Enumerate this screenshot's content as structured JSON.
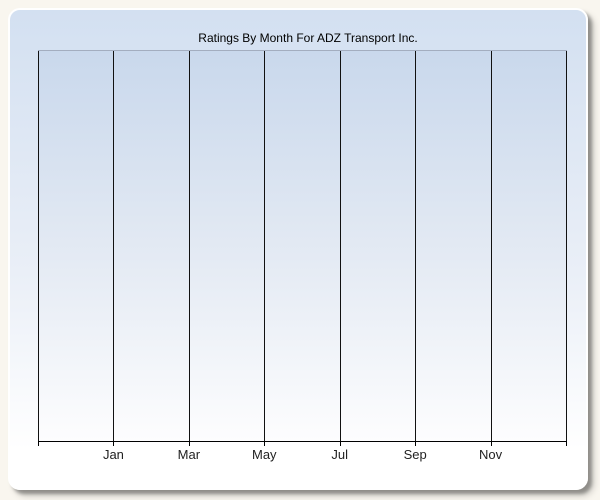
{
  "chart_data": {
    "type": "line",
    "title": "Ratings By Month For ADZ Transport Inc.",
    "x_tick_labels": [
      "Jan",
      "Mar",
      "May",
      "Jul",
      "Sep",
      "Nov"
    ],
    "y_tick_labels": [],
    "series": [],
    "plot_empty": true,
    "gridlines": "vertical-only",
    "legend": "none"
  },
  "colors": {
    "page-bg": "#f9f6ef",
    "panel-top": "#d3e0f1",
    "panel-bottom": "#ffffff",
    "plot-top": "#c9d8ec",
    "plot-bottom": "#fdfdfe",
    "gridline": "#111111",
    "axis": "#000000",
    "plot-top-border": "#a3adbf",
    "title-text": "#000000",
    "tick-label-text": "#222222"
  }
}
